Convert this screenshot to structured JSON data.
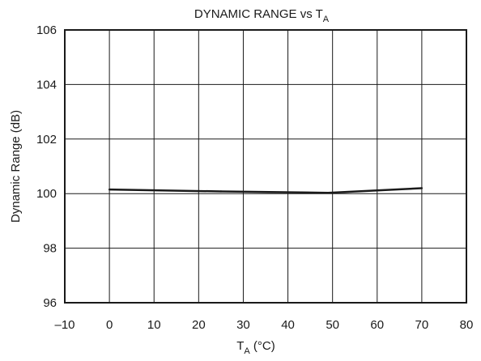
{
  "chart_data": {
    "type": "line",
    "title": "DYNAMIC RANGE vs T",
    "title_subscript": "A",
    "xlabel": "T",
    "xlabel_subscript": "A",
    "xlabel_suffix": " (°C)",
    "ylabel": "Dynamic Range (dB)",
    "xlim": [
      -10,
      80
    ],
    "ylim": [
      96,
      106
    ],
    "xticks": [
      -10,
      0,
      10,
      20,
      30,
      40,
      50,
      60,
      70,
      80
    ],
    "xtick_labels": [
      "–10",
      "0",
      "10",
      "20",
      "30",
      "40",
      "50",
      "60",
      "70",
      "80"
    ],
    "yticks": [
      96,
      98,
      100,
      102,
      104,
      106
    ],
    "ytick_labels": [
      "96",
      "98",
      "100",
      "102",
      "104",
      "106"
    ],
    "grid": true,
    "series": [
      {
        "x": [
          0,
          25,
          49,
          70
        ],
        "values": [
          100.15,
          100.08,
          100.03,
          100.2
        ],
        "color": "#1a1a1a"
      }
    ]
  }
}
